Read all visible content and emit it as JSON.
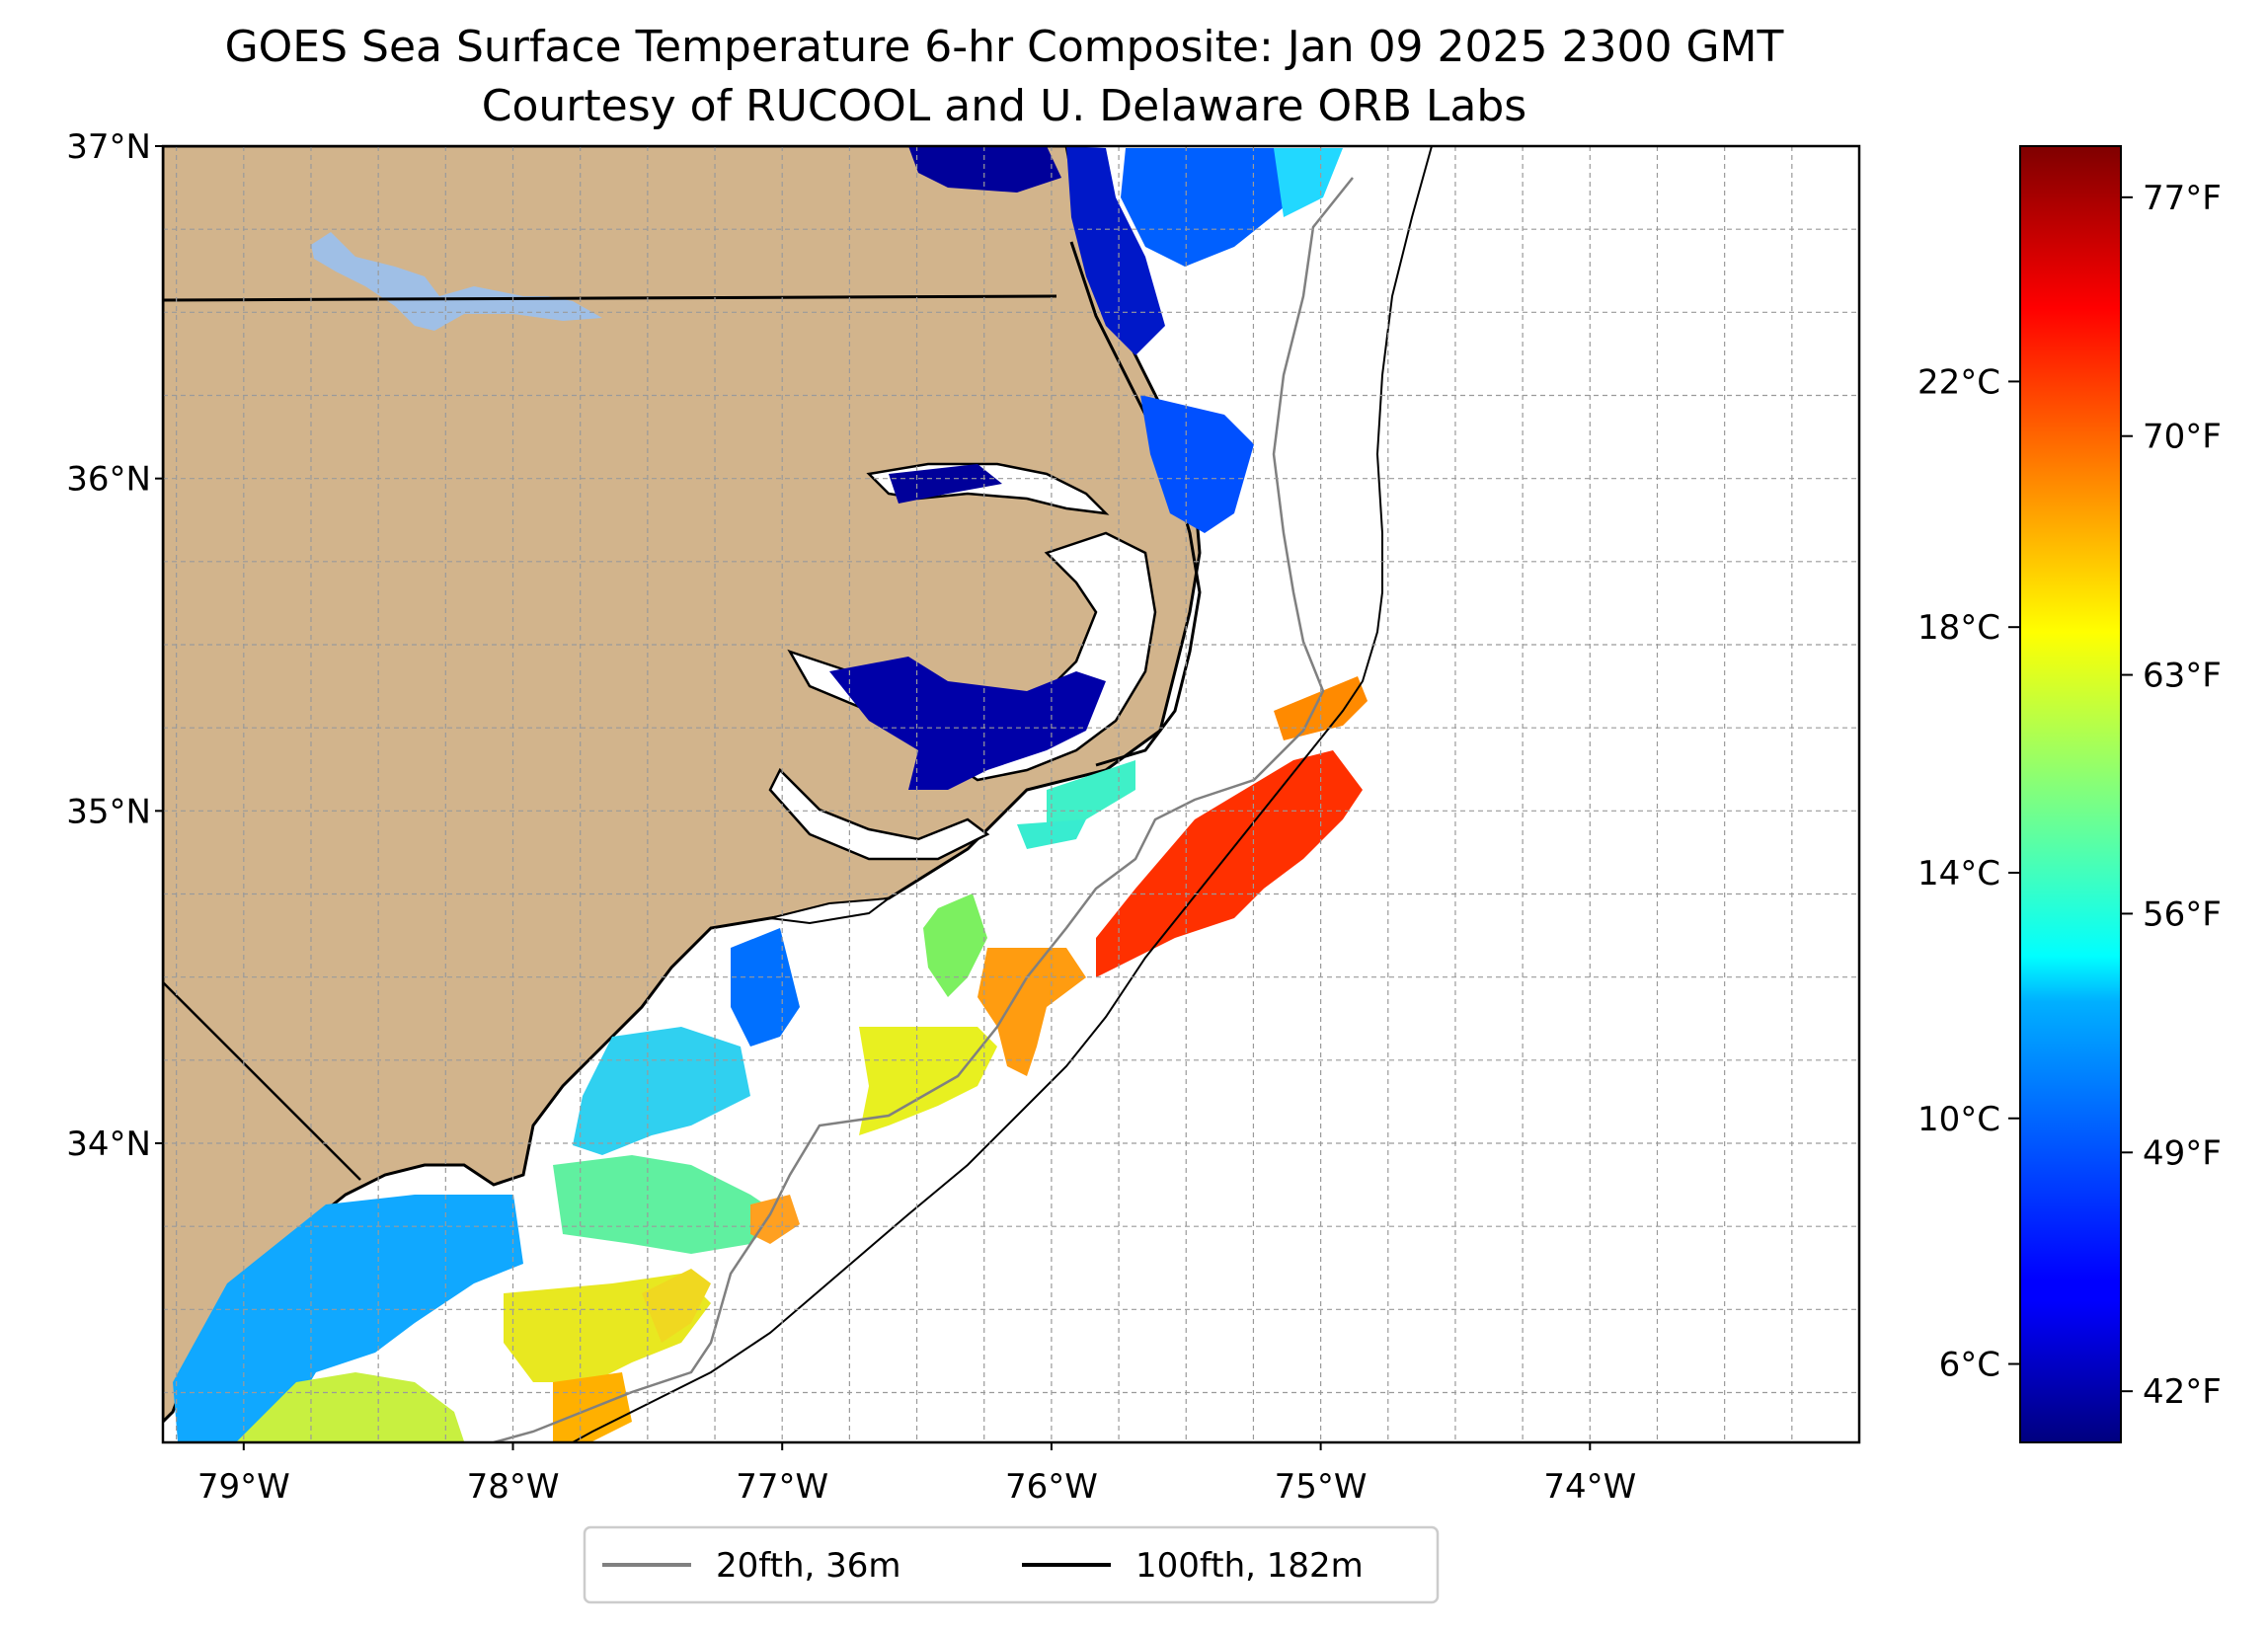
{
  "title": {
    "line1": "GOES Sea Surface Temperature 6-hr Composite: Jan 09 2025 2300 GMT",
    "line2": "Courtesy of RUCOOL and U. Delaware ORB Labs"
  },
  "map": {
    "lat_labels": [
      "37°N",
      "36°N",
      "35°N",
      "34°N"
    ],
    "lon_labels": [
      "79°W",
      "78°W",
      "77°W",
      "76°W",
      "75°W",
      "74°W"
    ],
    "extent": {
      "lon_min": -79.3,
      "lon_max": -73.0,
      "lat_min": 33.1,
      "lat_max": 37.0
    },
    "land_color": "#d2b48c",
    "water_inland_color": "#9fbfe6",
    "grid": true
  },
  "colorbar": {
    "celsius_labels": [
      "22°C",
      "18°C",
      "14°C",
      "10°C",
      "6°C"
    ],
    "fahrenheit_labels": [
      "77°F",
      "70°F",
      "63°F",
      "56°F",
      "49°F",
      "42°F"
    ],
    "colormap": "jet",
    "range_f": [
      40.5,
      78.5
    ]
  },
  "legend": {
    "items": [
      {
        "label": "20fth, 36m",
        "color": "#808080"
      },
      {
        "label": "100fth, 182m",
        "color": "#000000"
      }
    ],
    "placement": "bottom-center"
  }
}
